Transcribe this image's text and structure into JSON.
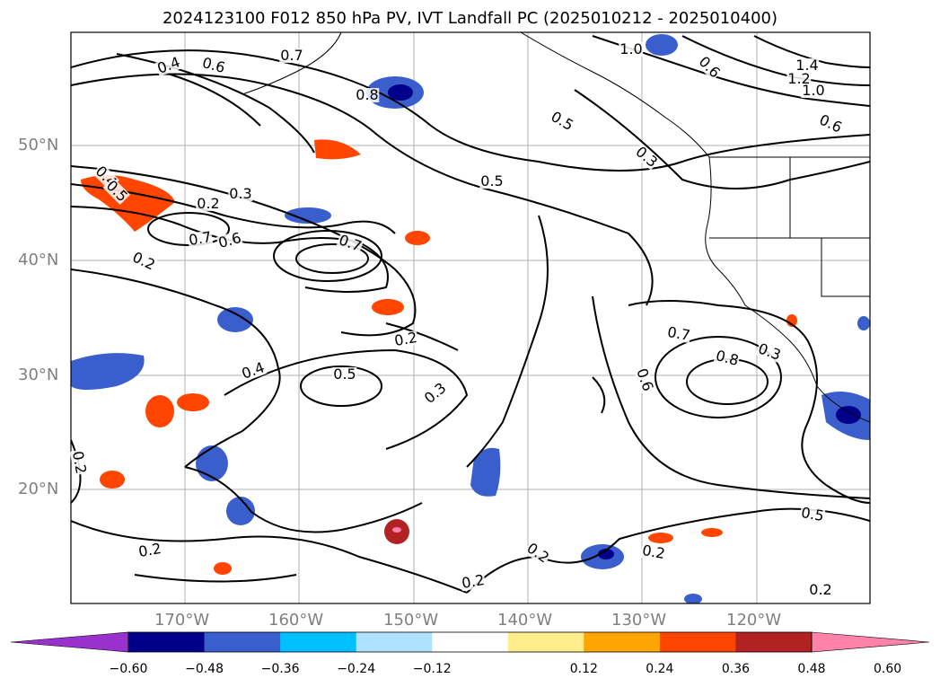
{
  "title": "2024123100 F012 850 hPa PV, IVT Landfall PC (2025010212 - 2025010400)",
  "lat_labels": [
    "50°N",
    "40°N",
    "30°N",
    "20°N"
  ],
  "lon_labels": [
    "170°W",
    "160°W",
    "150°W",
    "140°W",
    "130°W",
    "120°W"
  ],
  "colorbar": {
    "ticks": [
      "−0.60",
      "−0.48",
      "−0.36",
      "−0.24",
      "−0.12",
      "0.12",
      "0.24",
      "0.36",
      "0.48",
      "0.60"
    ],
    "colors": [
      "#9932cc",
      "#00008b",
      "#3a5fcd",
      "#00bfff",
      "#b0e2ff",
      "#ffffff",
      "#ffec8b",
      "#ffa500",
      "#ff4500",
      "#b22222",
      "#ff82ab"
    ]
  },
  "colors": {
    "land": "#ffffff",
    "gridline": "#b0b0b0",
    "contour": "#000000"
  },
  "contour_labels": [
    "0.4",
    "0.6",
    "0.7",
    "0.8",
    "1.0",
    "0.6",
    "1.4",
    "1.2",
    "1.0",
    "0.6",
    "0.5",
    "0.3",
    "0.4",
    "0.5",
    "0.3",
    "0.2",
    "0.5",
    "0.7",
    "0.6",
    "0.7",
    "0.2",
    "0.2",
    "0.4",
    "0.5",
    "0.3",
    "0.7",
    "0.8",
    "0.6",
    "0.2",
    "0.5",
    "0.2",
    "0.2",
    "0.2",
    "0.2",
    "0.2",
    "0.3"
  ]
}
